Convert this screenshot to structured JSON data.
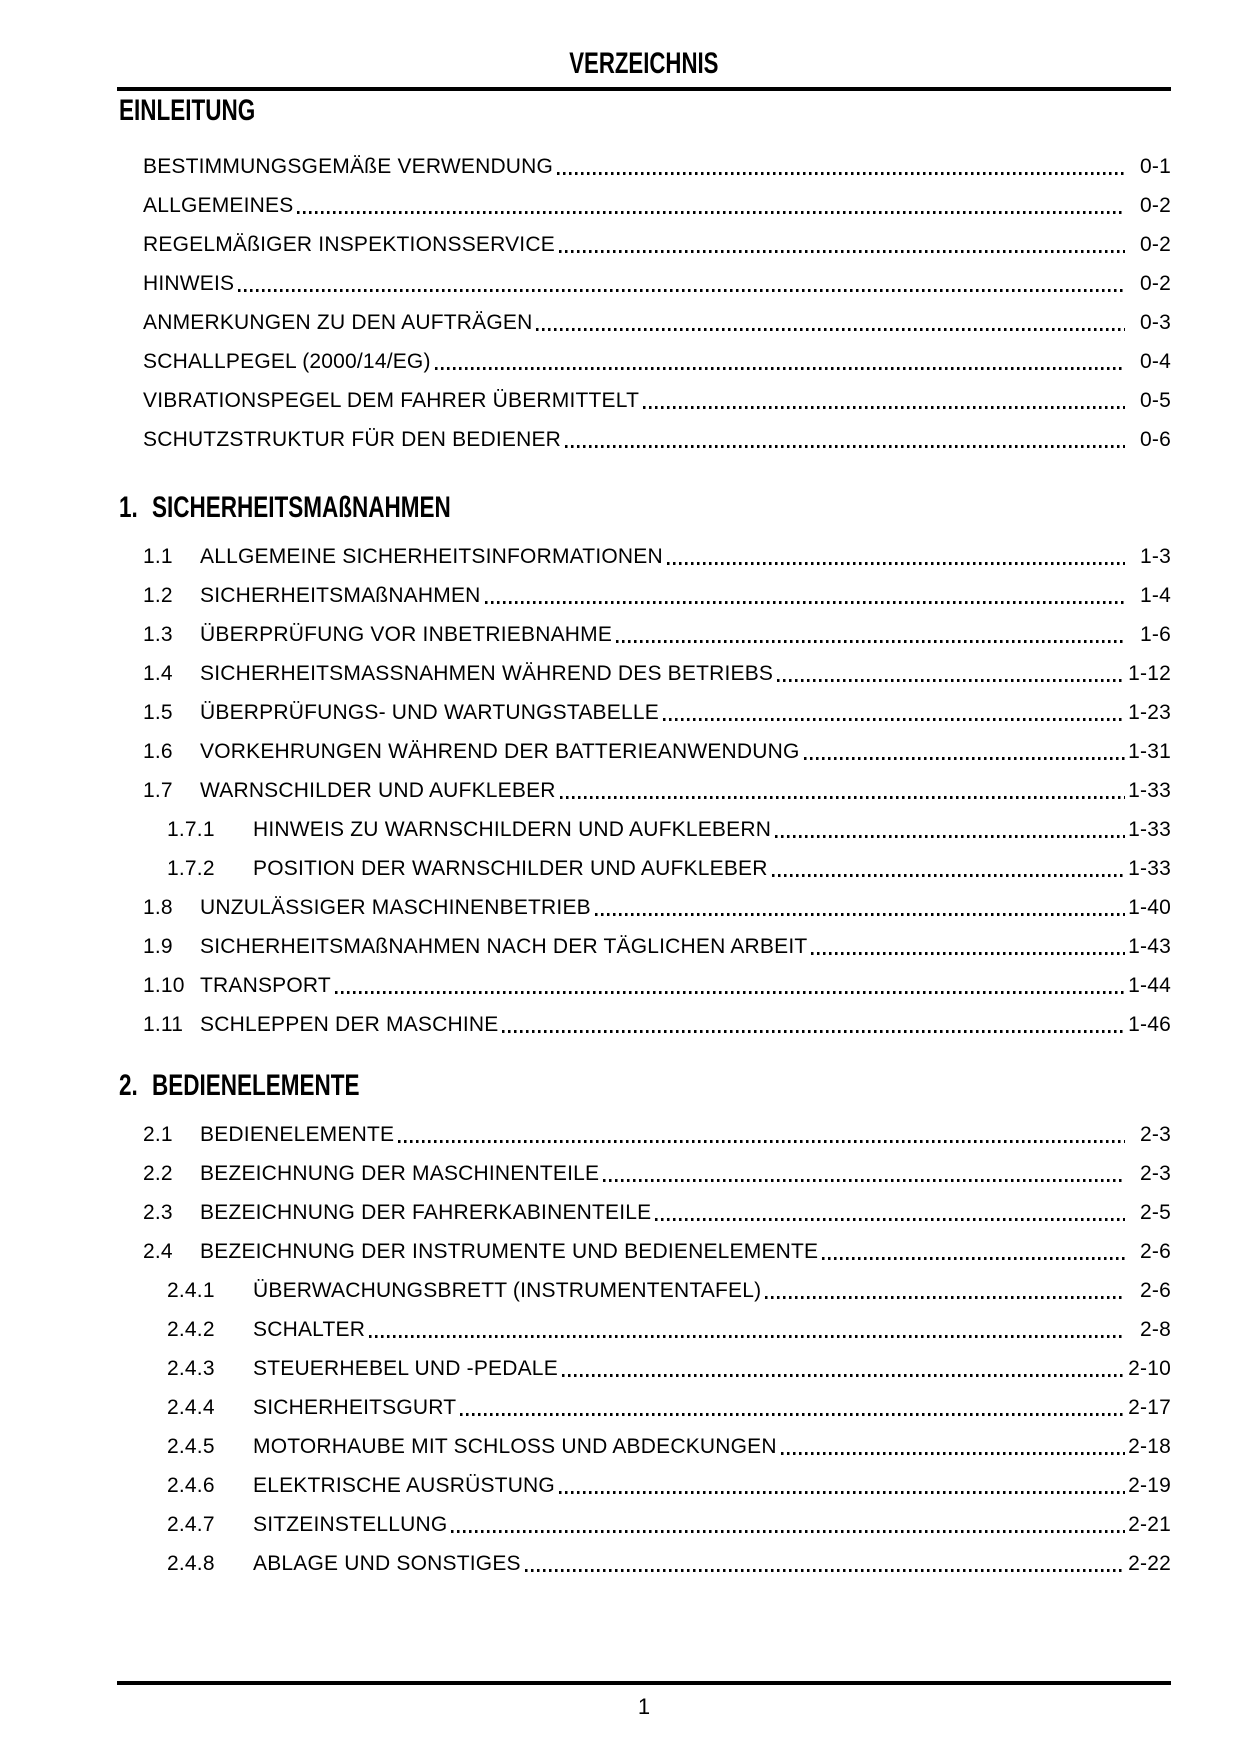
{
  "header": {
    "title": "VERZEICHNIS"
  },
  "footer": {
    "page_number": "1"
  },
  "toc": {
    "sections": [
      {
        "number": "",
        "title": "EINLEITUNG",
        "entries": [
          {
            "num": "",
            "label": "BESTIMMUNGSGEMÄßE VERWENDUNG",
            "page": "0-1",
            "level": 1
          },
          {
            "num": "",
            "label": "ALLGEMEINES",
            "page": "0-2",
            "level": 1
          },
          {
            "num": "",
            "label": "REGELMÄßIGER INSPEKTIONSSERVICE",
            "page": "0-2",
            "level": 1
          },
          {
            "num": "",
            "label": "HINWEIS",
            "page": "0-2",
            "level": 1
          },
          {
            "num": "",
            "label": "ANMERKUNGEN ZU DEN AUFTRÄGEN",
            "page": "0-3",
            "level": 1
          },
          {
            "num": "",
            "label": "SCHALLPEGEL (2000/14/EG)",
            "page": "0-4",
            "level": 1
          },
          {
            "num": "",
            "label": "VIBRATIONSPEGEL DEM FAHRER ÜBERMITTELT",
            "page": "0-5",
            "level": 1
          },
          {
            "num": "",
            "label": "SCHUTZSTRUKTUR FÜR DEN BEDIENER",
            "page": "0-6",
            "level": 1
          }
        ]
      },
      {
        "number": "1.",
        "title": "SICHERHEITSMAßNAHMEN",
        "entries": [
          {
            "num": "1.1",
            "label": "ALLGEMEINE SICHERHEITSINFORMATIONEN",
            "page": "1-3",
            "level": 2
          },
          {
            "num": "1.2",
            "label": "SICHERHEITSMAßNAHMEN",
            "page": "1-4",
            "level": 2
          },
          {
            "num": "1.3",
            "label": "ÜBERPRÜFUNG VOR INBETRIEBNAHME",
            "page": "1-6",
            "level": 2
          },
          {
            "num": "1.4",
            "label": "SICHERHEITSMASSNAHMEN WÄHREND DES BETRIEBS",
            "page": "1-12",
            "level": 2
          },
          {
            "num": "1.5",
            "label": "ÜBERPRÜFUNGS- UND WARTUNGSTABELLE",
            "page": "1-23",
            "level": 2
          },
          {
            "num": "1.6",
            "label": "VORKEHRUNGEN WÄHREND DER BATTERIEANWENDUNG",
            "page": "1-31",
            "level": 2
          },
          {
            "num": "1.7",
            "label": "WARNSCHILDER UND AUFKLEBER",
            "page": "1-33",
            "level": 2
          },
          {
            "num": "1.7.1",
            "label": "HINWEIS ZU WARNSCHILDERN UND AUFKLEBERN",
            "page": "1-33",
            "level": 3
          },
          {
            "num": "1.7.2",
            "label": "POSITION DER WARNSCHILDER UND AUFKLEBER",
            "page": "1-33",
            "level": 3
          },
          {
            "num": "1.8",
            "label": "UNZULÄSSIGER MASCHINENBETRIEB",
            "page": "1-40",
            "level": 2
          },
          {
            "num": "1.9",
            "label": "SICHERHEITSMAßNAHMEN NACH DER TÄGLICHEN ARBEIT",
            "page": "1-43",
            "level": 2
          },
          {
            "num": "1.10",
            "label": "TRANSPORT",
            "page": "1-44",
            "level": 2
          },
          {
            "num": "1.11",
            "label": "SCHLEPPEN DER MASCHINE",
            "page": "1-46",
            "level": 2
          }
        ]
      },
      {
        "number": "2.",
        "title": "BEDIENELEMENTE",
        "entries": [
          {
            "num": "2.1",
            "label": "BEDIENELEMENTE",
            "page": "2-3",
            "level": 2
          },
          {
            "num": "2.2",
            "label": "BEZEICHNUNG DER MASCHINENTEILE",
            "page": "2-3",
            "level": 2
          },
          {
            "num": "2.3",
            "label": "BEZEICHNUNG DER FAHRERKABINENTEILE",
            "page": "2-5",
            "level": 2
          },
          {
            "num": "2.4",
            "label": "BEZEICHNUNG DER INSTRUMENTE UND BEDIENELEMENTE",
            "page": "2-6",
            "level": 2
          },
          {
            "num": "2.4.1",
            "label": "ÜBERWACHUNGSBRETT (INSTRUMENTENTAFEL)",
            "page": "2-6",
            "level": 3
          },
          {
            "num": "2.4.2",
            "label": "SCHALTER",
            "page": "2-8",
            "level": 3
          },
          {
            "num": "2.4.3",
            "label": "STEUERHEBEL UND -PEDALE",
            "page": "2-10",
            "level": 3
          },
          {
            "num": "2.4.4",
            "label": "SICHERHEITSGURT",
            "page": "2-17",
            "level": 3
          },
          {
            "num": "2.4.5",
            "label": "MOTORHAUBE MIT SCHLOSS UND ABDECKUNGEN",
            "page": "2-18",
            "level": 3
          },
          {
            "num": "2.4.6",
            "label": "ELEKTRISCHE AUSRÜSTUNG",
            "page": "2-19",
            "level": 3
          },
          {
            "num": "2.4.7",
            "label": "SITZEINSTELLUNG",
            "page": "2-21",
            "level": 3
          },
          {
            "num": "2.4.8",
            "label": "ABLAGE UND SONSTIGES",
            "page": "2-22",
            "level": 3
          }
        ]
      }
    ]
  }
}
